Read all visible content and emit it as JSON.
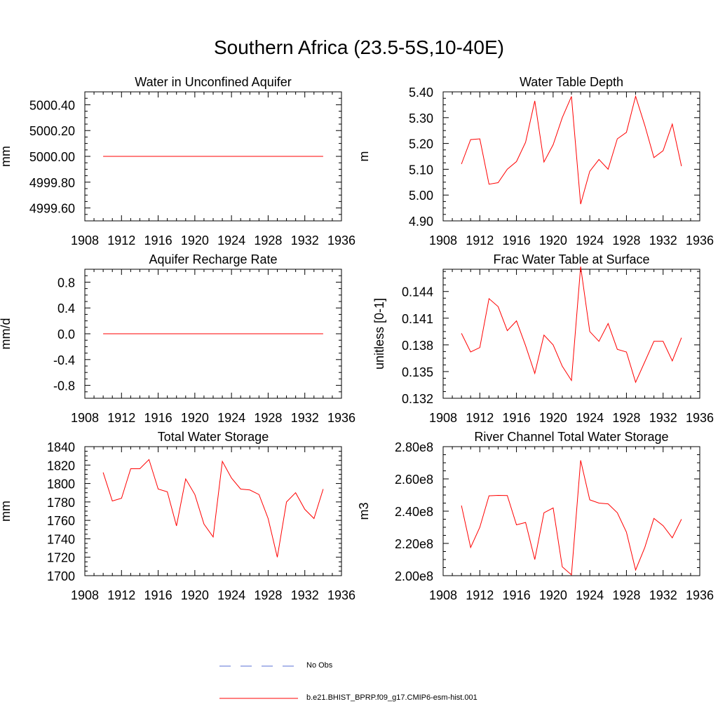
{
  "title": "Southern Africa (23.5-5S,10-40E)",
  "line_color": "#ff0000",
  "obs_color": "#5a6fd6",
  "legend": {
    "obs_label": "No Obs",
    "model_label": "b.e21.BHIST_BPRP.f09_g17.CMIP6-esm-hist.001"
  },
  "chart_data": [
    {
      "type": "line",
      "title": "Water in Unconfined Aquifer",
      "ylabel": "mm",
      "xlim": [
        1908,
        1936
      ],
      "ylim": [
        4999.5,
        5000.5
      ],
      "xticks": [
        1908,
        1912,
        1916,
        1920,
        1924,
        1928,
        1932,
        1936
      ],
      "yticks": [
        4999.6,
        4999.8,
        5000.0,
        5000.2,
        5000.4
      ],
      "ytick_labels": [
        "4999.60",
        "4999.80",
        "5000.00",
        "5000.20",
        "5000.40"
      ],
      "series": [
        {
          "x": [
            1910,
            1911,
            1912,
            1913,
            1914,
            1915,
            1916,
            1917,
            1918,
            1919,
            1920,
            1921,
            1922,
            1923,
            1924,
            1925,
            1926,
            1927,
            1928,
            1929,
            1930,
            1931,
            1932,
            1933,
            1934
          ],
          "values": [
            5000.0,
            5000.0,
            5000.0,
            5000.0,
            5000.0,
            5000.0,
            5000.0,
            5000.0,
            5000.0,
            5000.0,
            5000.0,
            5000.0,
            5000.0,
            5000.0,
            5000.0,
            5000.0,
            5000.0,
            5000.0,
            5000.0,
            5000.0,
            5000.0,
            5000.0,
            5000.0,
            5000.0,
            5000.0
          ]
        }
      ]
    },
    {
      "type": "line",
      "title": "Water Table Depth",
      "ylabel": "m",
      "xlim": [
        1908,
        1936
      ],
      "ylim": [
        4.9,
        5.4
      ],
      "xticks": [
        1908,
        1912,
        1916,
        1920,
        1924,
        1928,
        1932,
        1936
      ],
      "yticks": [
        4.9,
        5.0,
        5.1,
        5.2,
        5.3,
        5.4
      ],
      "ytick_labels": [
        "4.90",
        "5.00",
        "5.10",
        "5.20",
        "5.30",
        "5.40"
      ],
      "series": [
        {
          "x": [
            1910,
            1911,
            1912,
            1913,
            1914,
            1915,
            1916,
            1917,
            1918,
            1919,
            1920,
            1921,
            1922,
            1923,
            1924,
            1925,
            1926,
            1927,
            1928,
            1929,
            1930,
            1931,
            1932,
            1933,
            1934
          ],
          "values": [
            5.12,
            5.215,
            5.218,
            5.042,
            5.048,
            5.1,
            5.13,
            5.205,
            5.365,
            5.128,
            5.195,
            5.3,
            5.382,
            4.965,
            5.092,
            5.138,
            5.1,
            5.218,
            5.243,
            5.383,
            5.27,
            5.145,
            5.172,
            5.275,
            5.112
          ]
        }
      ]
    },
    {
      "type": "line",
      "title": "Aquifer Recharge Rate",
      "ylabel": "mm/d",
      "xlim": [
        1908,
        1936
      ],
      "ylim": [
        -1.0,
        1.0
      ],
      "xticks": [
        1908,
        1912,
        1916,
        1920,
        1924,
        1928,
        1932,
        1936
      ],
      "yticks": [
        -0.8,
        -0.4,
        0.0,
        0.4,
        0.8
      ],
      "ytick_labels": [
        "-0.8",
        "-0.4",
        "0.0",
        "0.4",
        "0.8"
      ],
      "series": [
        {
          "x": [
            1910,
            1911,
            1912,
            1913,
            1914,
            1915,
            1916,
            1917,
            1918,
            1919,
            1920,
            1921,
            1922,
            1923,
            1924,
            1925,
            1926,
            1927,
            1928,
            1929,
            1930,
            1931,
            1932,
            1933,
            1934
          ],
          "values": [
            0,
            0,
            0,
            0,
            0,
            0,
            0,
            0,
            0,
            0,
            0,
            0,
            0,
            0,
            0,
            0,
            0,
            0,
            0,
            0,
            0,
            0,
            0,
            0,
            0
          ]
        }
      ]
    },
    {
      "type": "line",
      "title": "Frac Water Table at Surface",
      "ylabel": "unitless [0-1]",
      "xlim": [
        1908,
        1936
      ],
      "ylim": [
        0.132,
        0.1465
      ],
      "xticks": [
        1908,
        1912,
        1916,
        1920,
        1924,
        1928,
        1932,
        1936
      ],
      "yticks": [
        0.132,
        0.135,
        0.138,
        0.141,
        0.144
      ],
      "ytick_labels": [
        "0.132",
        "0.135",
        "0.138",
        "0.141",
        "0.144"
      ],
      "series": [
        {
          "x": [
            1910,
            1911,
            1912,
            1913,
            1914,
            1915,
            1916,
            1917,
            1918,
            1919,
            1920,
            1921,
            1922,
            1923,
            1924,
            1925,
            1926,
            1927,
            1928,
            1929,
            1930,
            1931,
            1932,
            1933,
            1934
          ],
          "values": [
            0.1393,
            0.1372,
            0.1377,
            0.1432,
            0.1423,
            0.1396,
            0.1407,
            0.1379,
            0.1348,
            0.1391,
            0.138,
            0.1356,
            0.134,
            0.1468,
            0.1395,
            0.1384,
            0.1404,
            0.1375,
            0.1372,
            0.1338,
            0.1361,
            0.1384,
            0.1384,
            0.1362,
            0.1388
          ]
        }
      ]
    },
    {
      "type": "line",
      "title": "Total Water Storage",
      "ylabel": "mm",
      "xlim": [
        1908,
        1936
      ],
      "ylim": [
        1700,
        1840
      ],
      "xticks": [
        1908,
        1912,
        1916,
        1920,
        1924,
        1928,
        1932,
        1936
      ],
      "yticks": [
        1700,
        1720,
        1740,
        1760,
        1780,
        1800,
        1820,
        1840
      ],
      "ytick_labels": [
        "1700",
        "1720",
        "1740",
        "1760",
        "1780",
        "1800",
        "1820",
        "1840"
      ],
      "series": [
        {
          "x": [
            1910,
            1911,
            1912,
            1913,
            1914,
            1915,
            1916,
            1917,
            1918,
            1919,
            1920,
            1921,
            1922,
            1923,
            1924,
            1925,
            1926,
            1927,
            1928,
            1929,
            1930,
            1931,
            1932,
            1933,
            1934
          ],
          "values": [
            1812,
            1781,
            1784,
            1816,
            1816,
            1826,
            1794,
            1791,
            1754,
            1805,
            1788,
            1756,
            1742,
            1824,
            1806,
            1794,
            1793,
            1788,
            1762,
            1720,
            1780,
            1790,
            1772,
            1762,
            1794
          ]
        }
      ]
    },
    {
      "type": "line",
      "title": "River Channel Total Water Storage",
      "ylabel": "m3",
      "xlim": [
        1908,
        1936
      ],
      "ylim": [
        200000000.0,
        280000000.0
      ],
      "xticks": [
        1908,
        1912,
        1916,
        1920,
        1924,
        1928,
        1932,
        1936
      ],
      "yticks": [
        200000000.0,
        220000000.0,
        240000000.0,
        260000000.0,
        280000000.0
      ],
      "ytick_labels": [
        "2.00e8",
        "2.20e8",
        "2.40e8",
        "2.60e8",
        "2.80e8"
      ],
      "series": [
        {
          "x": [
            1910,
            1911,
            1912,
            1913,
            1914,
            1915,
            1916,
            1917,
            1918,
            1919,
            1920,
            1921,
            1922,
            1923,
            1924,
            1925,
            1926,
            1927,
            1928,
            1929,
            1930,
            1931,
            1932,
            1933,
            1934
          ],
          "values": [
            243500000.0,
            217500000.0,
            230000000.0,
            249500000.0,
            249800000.0,
            249700000.0,
            231500000.0,
            233000000.0,
            210000000.0,
            239000000.0,
            242000000.0,
            205500000.0,
            200500000.0,
            271500000.0,
            247000000.0,
            245000000.0,
            244500000.0,
            239000000.0,
            227000000.0,
            203500000.0,
            217500000.0,
            235500000.0,
            231000000.0,
            223500000.0,
            235000000.0
          ]
        }
      ]
    }
  ]
}
